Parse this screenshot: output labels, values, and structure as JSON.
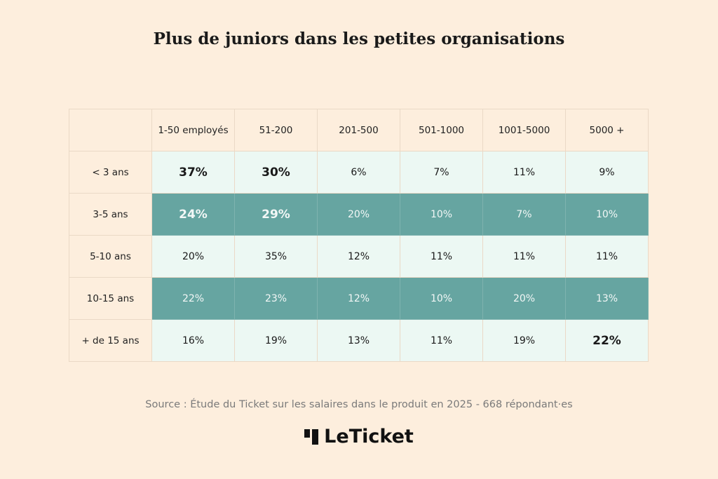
{
  "title": "Plus de juniors dans les petites organisations",
  "colors": {
    "background": "#fdeedd",
    "light_row": "#ecf8f3",
    "dark_row": "#66a5a1"
  },
  "chart_data": {
    "type": "table",
    "title": "Plus de juniors dans les petites organisations",
    "columns": [
      "1-50 employés",
      "51-200",
      "201-500",
      "501-1000",
      "1001-5000",
      "5000 +"
    ],
    "rows": [
      {
        "label": "< 3 ans",
        "style": "light",
        "values": [
          "37%",
          "30%",
          "6%",
          "7%",
          "11%",
          "9%"
        ],
        "bold": [
          true,
          true,
          false,
          false,
          false,
          false
        ]
      },
      {
        "label": "3-5 ans",
        "style": "dark",
        "values": [
          "24%",
          "29%",
          "20%",
          "10%",
          "7%",
          "10%"
        ],
        "bold": [
          true,
          true,
          false,
          false,
          false,
          false
        ]
      },
      {
        "label": "5-10 ans",
        "style": "light",
        "values": [
          "20%",
          "35%",
          "12%",
          "11%",
          "11%",
          "11%"
        ],
        "bold": [
          false,
          false,
          false,
          false,
          false,
          false
        ]
      },
      {
        "label": "10-15 ans",
        "style": "dark",
        "values": [
          "22%",
          "23%",
          "12%",
          "10%",
          "20%",
          "13%"
        ],
        "bold": [
          false,
          false,
          false,
          false,
          false,
          false
        ]
      },
      {
        "label": "+ de 15 ans",
        "style": "light",
        "values": [
          "16%",
          "19%",
          "13%",
          "11%",
          "19%",
          "22%"
        ],
        "bold": [
          false,
          false,
          false,
          false,
          false,
          true
        ]
      }
    ]
  },
  "source": "Source : Étude du Ticket sur les salaires dans le produit en 2025 - 668 répondant·es",
  "logo": {
    "text": "LeTicket"
  }
}
